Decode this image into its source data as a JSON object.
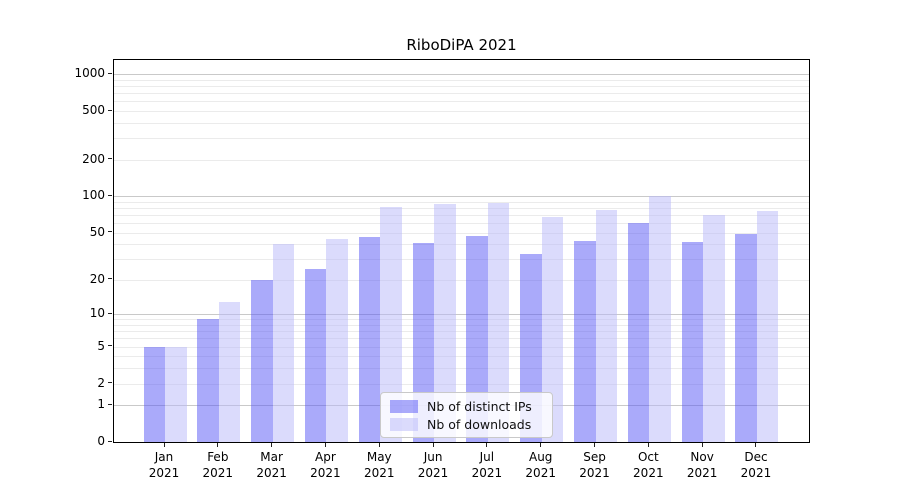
{
  "figure": {
    "background": "#ffffff"
  },
  "chart_data": {
    "type": "bar",
    "title": "RiboDiPA 2021",
    "categories": [
      "Jan",
      "Feb",
      "Mar",
      "Apr",
      "May",
      "Jun",
      "Jul",
      "Aug",
      "Sep",
      "Oct",
      "Nov",
      "Dec"
    ],
    "x_tick_second_line": "2021",
    "series": [
      {
        "name": "Nb of distinct IPs",
        "color": "#5555f5",
        "apparent_color": "#aaaafa",
        "values": [
          5,
          9,
          20,
          25,
          46,
          41,
          47,
          33,
          43,
          60,
          42,
          49
        ]
      },
      {
        "name": "Nb of downloads",
        "color": "#b7b7fa",
        "apparent_color": "#dbdbfb",
        "values": [
          5,
          13,
          40,
          44,
          82,
          86,
          88,
          67,
          77,
          100,
          70,
          75
        ]
      }
    ],
    "xlabel": "",
    "ylabel": "",
    "yscale": "log1p",
    "ylim": [
      0,
      1306
    ],
    "yticks": [
      0,
      1,
      2,
      5,
      10,
      20,
      50,
      100,
      200,
      500,
      1000
    ],
    "minor_gridlines": [
      3,
      4,
      6,
      7,
      8,
      9,
      30,
      40,
      60,
      70,
      80,
      90,
      300,
      400,
      600,
      700,
      800,
      900
    ],
    "grid": "on",
    "legend_position": "lower center inside",
    "grid_decade_color": "#c9c9c9",
    "grid_minor_color": "#ebebeb",
    "axis_color": "#000000"
  }
}
